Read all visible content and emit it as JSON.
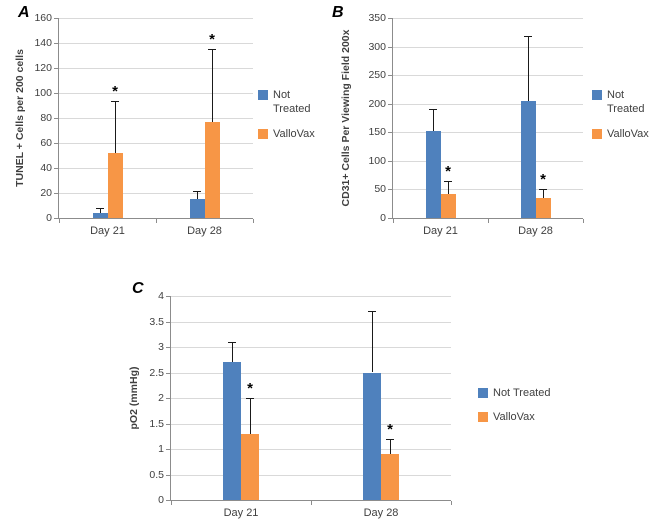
{
  "significance_marker": "*",
  "colors": {
    "not_treated": "#4F81BD",
    "vallovax": "#F79646",
    "gridline": "#D9D9D9",
    "axis": "#8C8C8C",
    "text": "#404040",
    "error_bar": "#1A1A1A",
    "background": "#FFFFFF"
  },
  "chart_data": [
    {
      "panel": "A",
      "type": "bar",
      "title": "",
      "xlabel": "",
      "ylabel": "TUNEL + Cells per 200 cells",
      "ylim": [
        0,
        160
      ],
      "ytick_step": 20,
      "grid": true,
      "legend_position": "right",
      "categories": [
        "Day 21",
        "Day 28"
      ],
      "series": [
        {
          "name": "Not Treated",
          "color": "#4F81BD",
          "values": [
            4,
            15
          ],
          "errors_plus": [
            4,
            7
          ],
          "asterisk": [
            false,
            false
          ]
        },
        {
          "name": "ValloVax",
          "color": "#F79646",
          "values": [
            52,
            77
          ],
          "errors_plus": [
            42,
            58
          ],
          "asterisk": [
            true,
            true
          ]
        }
      ]
    },
    {
      "panel": "B",
      "type": "bar",
      "title": "",
      "xlabel": "",
      "ylabel": "CD31+ Cells Per Viewing Field 200x",
      "ylim": [
        0,
        350
      ],
      "ytick_step": 50,
      "grid": true,
      "legend_position": "right",
      "categories": [
        "Day 21",
        "Day 28"
      ],
      "series": [
        {
          "name": "Not Treated",
          "color": "#4F81BD",
          "values": [
            153,
            205
          ],
          "errors_plus": [
            37,
            113
          ],
          "asterisk": [
            false,
            false
          ]
        },
        {
          "name": "ValloVax",
          "color": "#F79646",
          "values": [
            42,
            35
          ],
          "errors_plus": [
            23,
            15
          ],
          "asterisk": [
            true,
            true
          ]
        }
      ]
    },
    {
      "panel": "C",
      "type": "bar",
      "title": "",
      "xlabel": "",
      "ylabel": "pO2 (mmHg)",
      "ylim": [
        0,
        4
      ],
      "ytick_step": 0.5,
      "grid": true,
      "legend_position": "right",
      "categories": [
        "Day 21",
        "Day 28"
      ],
      "series": [
        {
          "name": "Not Treated",
          "color": "#4F81BD",
          "values": [
            2.7,
            2.5
          ],
          "errors_plus": [
            0.4,
            1.2
          ],
          "asterisk": [
            false,
            false
          ]
        },
        {
          "name": "ValloVax",
          "color": "#F79646",
          "values": [
            1.3,
            0.9
          ],
          "errors_plus": [
            0.7,
            0.3
          ],
          "asterisk": [
            true,
            true
          ]
        }
      ]
    }
  ]
}
